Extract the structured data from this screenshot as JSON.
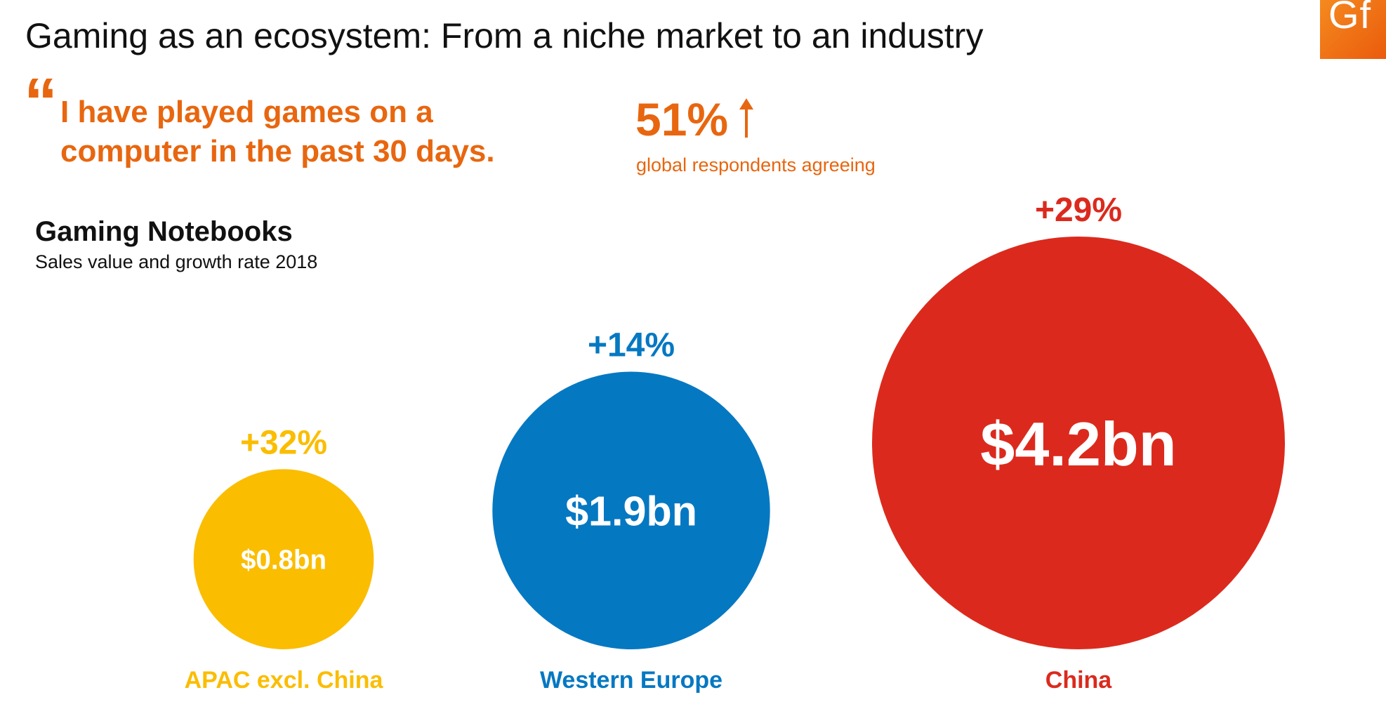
{
  "slide": {
    "title": "Gaming as an ecosystem: From a niche market to an industry",
    "logo_text": "Gf"
  },
  "quote": {
    "mark": "“",
    "text": "I have played games on a computer in the past 30 days."
  },
  "stat": {
    "value": "51%",
    "trend": "up",
    "label": "global respondents agreeing"
  },
  "colors": {
    "accent": "#e8660f",
    "apac": "#fbbd00",
    "western_europe": "#0578c2",
    "china": "#db2a1d"
  },
  "chart_data": {
    "type": "bubble",
    "title": "Gaming Notebooks",
    "subtitle": "Sales value and growth rate 2018",
    "categories": [
      "APAC excl. China",
      "Western Europe",
      "China"
    ],
    "values": [
      0.8,
      1.9,
      4.2
    ],
    "value_labels": [
      "$0.8bn",
      "$1.9bn",
      "$4.2bn"
    ],
    "growth_labels": [
      "+32%",
      "+14%",
      "+29%"
    ],
    "growth_rates": [
      32,
      14,
      29
    ],
    "unit": "bn USD",
    "colors": [
      "#fbbd00",
      "#0578c2",
      "#db2a1d"
    ],
    "legend": "none",
    "grid": false
  }
}
